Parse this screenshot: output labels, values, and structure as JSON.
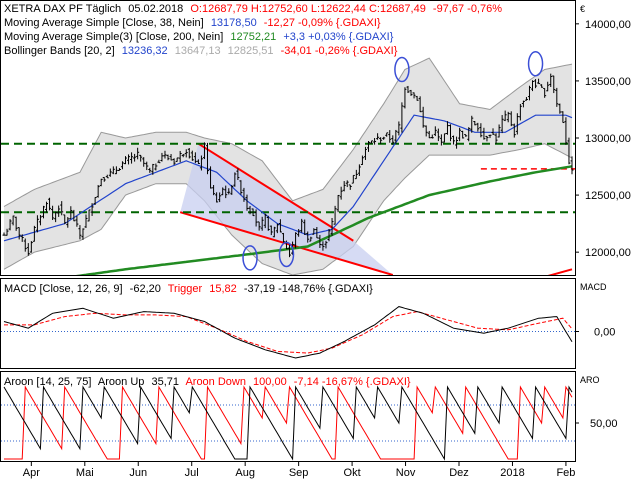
{
  "colors": {
    "red": "#ff0000",
    "blue": "#2244cc",
    "green": "#228b22",
    "dkgreen": "#006400",
    "gray": "#999999",
    "black": "#000000",
    "band": "#dcdcdc",
    "channel": "#c8cff0",
    "circle": "#3b4fd6",
    "axis": "#000000"
  },
  "chart_data": [
    {
      "type": "line",
      "panel": "price",
      "legend": {
        "line1_label": "XETRA DAX PF Täglich",
        "line1_date": "05.02.2018",
        "line1_ohlc": "O:12687,79 H:12752,60 L:12622,44 C:12687,49",
        "line1_change": "-97,67 -0,76%",
        "line2_label": "Moving Average Simple [Close, 38, Nein]",
        "line2_value": "13178,50",
        "line2_change": "-12,27 -0,09% {.GDAXI}",
        "line3_label": "Moving Average Simple(3) [Close, 200, Nein]",
        "line3_value": "12752,21",
        "line3_change": "+3,3 +0,03% {.GDAXI}",
        "line4_label": "Bollinger Bands [20, 2]",
        "line4_v1": "13236,32",
        "line4_v2": "13647,13",
        "line4_v3": "12825,51",
        "line4_change": "-34,01 -0,26% {.GDAXI}"
      },
      "x_labels": [
        "Apr",
        "Mai",
        "Jun",
        "Jul",
        "Aug",
        "Sep",
        "Okt",
        "Nov",
        "Dez",
        "2018",
        "Feb"
      ],
      "y_ticks": [
        "14000,00",
        "13500,00",
        "13000,00",
        "12500,00",
        "12000,00"
      ],
      "ylim": [
        11800,
        14200
      ],
      "price_nodes": [
        [
          0,
          12150
        ],
        [
          3,
          12300
        ],
        [
          5,
          12150
        ],
        [
          8,
          12000
        ],
        [
          10,
          12200
        ],
        [
          14,
          12450
        ],
        [
          16,
          12300
        ],
        [
          18,
          12400
        ],
        [
          20,
          12250
        ],
        [
          22,
          12350
        ],
        [
          25,
          12150
        ],
        [
          28,
          12350
        ],
        [
          32,
          12650
        ],
        [
          36,
          12700
        ],
        [
          40,
          12800
        ],
        [
          44,
          12850
        ],
        [
          48,
          12700
        ],
        [
          52,
          12850
        ],
        [
          56,
          12800
        ],
        [
          60,
          12900
        ],
        [
          64,
          12750
        ],
        [
          66,
          12920
        ],
        [
          68,
          12550
        ],
        [
          70,
          12450
        ],
        [
          72,
          12550
        ],
        [
          74,
          12500
        ],
        [
          76,
          12700
        ],
        [
          78,
          12550
        ],
        [
          80,
          12400
        ],
        [
          82,
          12350
        ],
        [
          84,
          12200
        ],
        [
          86,
          12300
        ],
        [
          88,
          12150
        ],
        [
          90,
          12250
        ],
        [
          92,
          12100
        ],
        [
          94,
          11980
        ],
        [
          96,
          12150
        ],
        [
          98,
          12250
        ],
        [
          100,
          12100
        ],
        [
          102,
          12200
        ],
        [
          104,
          12050
        ],
        [
          106,
          12100
        ],
        [
          108,
          12250
        ],
        [
          110,
          12500
        ],
        [
          112,
          12600
        ],
        [
          114,
          12600
        ],
        [
          116,
          12700
        ],
        [
          118,
          12850
        ],
        [
          120,
          12950
        ],
        [
          122,
          12980
        ],
        [
          124,
          13000
        ],
        [
          126,
          13020
        ],
        [
          128,
          12980
        ],
        [
          130,
          13100
        ],
        [
          132,
          13450
        ],
        [
          134,
          13400
        ],
        [
          136,
          13350
        ],
        [
          138,
          13100
        ],
        [
          140,
          13000
        ],
        [
          142,
          13050
        ],
        [
          144,
          12950
        ],
        [
          146,
          13100
        ],
        [
          148,
          12950
        ],
        [
          150,
          13050
        ],
        [
          152,
          13000
        ],
        [
          154,
          13150
        ],
        [
          156,
          13100
        ],
        [
          158,
          13000
        ],
        [
          160,
          13050
        ],
        [
          162,
          13000
        ],
        [
          164,
          13150
        ],
        [
          166,
          13200
        ],
        [
          168,
          13050
        ],
        [
          170,
          13300
        ],
        [
          172,
          13350
        ],
        [
          174,
          13500
        ],
        [
          176,
          13450
        ],
        [
          178,
          13400
        ],
        [
          180,
          13550
        ],
        [
          182,
          13300
        ],
        [
          184,
          13150
        ],
        [
          186,
          12800
        ],
        [
          187,
          12690
        ]
      ],
      "ma38_nodes": [
        [
          0,
          12100
        ],
        [
          20,
          12250
        ],
        [
          40,
          12600
        ],
        [
          60,
          12800
        ],
        [
          70,
          12700
        ],
        [
          80,
          12450
        ],
        [
          90,
          12250
        ],
        [
          100,
          12150
        ],
        [
          108,
          12200
        ],
        [
          115,
          12400
        ],
        [
          125,
          12800
        ],
        [
          135,
          13200
        ],
        [
          145,
          13150
        ],
        [
          155,
          13050
        ],
        [
          165,
          13050
        ],
        [
          175,
          13200
        ],
        [
          185,
          13200
        ],
        [
          187,
          13178
        ]
      ],
      "ma200_nodes": [
        [
          0,
          11700
        ],
        [
          40,
          11850
        ],
        [
          80,
          11980
        ],
        [
          100,
          12050
        ],
        [
          120,
          12300
        ],
        [
          140,
          12500
        ],
        [
          160,
          12620
        ],
        [
          175,
          12700
        ],
        [
          187,
          12752
        ]
      ],
      "bb_upper_nodes": [
        [
          0,
          12400
        ],
        [
          10,
          12550
        ],
        [
          25,
          12700
        ],
        [
          32,
          13050
        ],
        [
          40,
          13000
        ],
        [
          50,
          13050
        ],
        [
          60,
          13050
        ],
        [
          66,
          13000
        ],
        [
          75,
          12950
        ],
        [
          85,
          12800
        ],
        [
          95,
          12450
        ],
        [
          105,
          12550
        ],
        [
          115,
          12900
        ],
        [
          125,
          13300
        ],
        [
          132,
          13600
        ],
        [
          140,
          13700
        ],
        [
          150,
          13300
        ],
        [
          160,
          13250
        ],
        [
          170,
          13450
        ],
        [
          178,
          13600
        ],
        [
          187,
          13647
        ]
      ],
      "bb_lower_nodes": [
        [
          0,
          11850
        ],
        [
          10,
          12000
        ],
        [
          25,
          12100
        ],
        [
          32,
          12200
        ],
        [
          40,
          12500
        ],
        [
          50,
          12600
        ],
        [
          60,
          12600
        ],
        [
          66,
          12450
        ],
        [
          75,
          12150
        ],
        [
          85,
          11900
        ],
        [
          95,
          11800
        ],
        [
          105,
          11850
        ],
        [
          115,
          12050
        ],
        [
          125,
          12450
        ],
        [
          132,
          12650
        ],
        [
          140,
          12850
        ],
        [
          150,
          12850
        ],
        [
          160,
          12850
        ],
        [
          170,
          12900
        ],
        [
          178,
          12950
        ],
        [
          187,
          12825
        ]
      ],
      "hlines": [
        12950,
        12350
      ],
      "red_dashed": [
        12730,
        157,
        187
      ],
      "channel": {
        "top": [
          [
            64,
            12950
          ],
          [
            115,
            12100
          ]
        ],
        "bottom": [
          [
            58,
            12350
          ],
          [
            128,
            11800
          ]
        ]
      },
      "trend_line": [
        [
          160,
          11650
        ],
        [
          187,
          11850
        ]
      ],
      "circles": [
        [
          81,
          11950
        ],
        [
          93,
          11980
        ],
        [
          131,
          13600
        ],
        [
          175,
          13650
        ]
      ]
    },
    {
      "type": "line",
      "panel": "macd",
      "legend": {
        "name": "MACD [Close, 12, 26, 9]",
        "value": "-62,20",
        "trigger_label": "Trigger",
        "trigger_value": "15,82",
        "change": "-37,19 -148,76% {.GDAXI}"
      },
      "axis_title": "MACD",
      "y_ticks": [
        "0,00"
      ],
      "ylim": [
        -220,
        220
      ],
      "macd_nodes": [
        [
          0,
          60
        ],
        [
          8,
          20
        ],
        [
          16,
          110
        ],
        [
          26,
          140
        ],
        [
          36,
          80
        ],
        [
          46,
          120
        ],
        [
          56,
          110
        ],
        [
          66,
          60
        ],
        [
          76,
          -40
        ],
        [
          86,
          -110
        ],
        [
          96,
          -160
        ],
        [
          104,
          -130
        ],
        [
          112,
          -60
        ],
        [
          122,
          40
        ],
        [
          130,
          150
        ],
        [
          138,
          110
        ],
        [
          148,
          20
        ],
        [
          158,
          -10
        ],
        [
          166,
          20
        ],
        [
          176,
          80
        ],
        [
          182,
          90
        ],
        [
          187,
          -62
        ]
      ],
      "trigger_nodes": [
        [
          0,
          40
        ],
        [
          10,
          40
        ],
        [
          20,
          90
        ],
        [
          30,
          110
        ],
        [
          40,
          100
        ],
        [
          50,
          100
        ],
        [
          60,
          90
        ],
        [
          70,
          20
        ],
        [
          80,
          -60
        ],
        [
          90,
          -120
        ],
        [
          100,
          -130
        ],
        [
          108,
          -100
        ],
        [
          118,
          -20
        ],
        [
          128,
          90
        ],
        [
          136,
          120
        ],
        [
          146,
          70
        ],
        [
          156,
          20
        ],
        [
          166,
          10
        ],
        [
          176,
          50
        ],
        [
          184,
          80
        ],
        [
          187,
          16
        ]
      ]
    },
    {
      "type": "line",
      "panel": "aroon",
      "legend": {
        "name": "Aroon [14, 25, 75]",
        "up_label": "Aroon Up",
        "up_value": "35,71",
        "down_label": "Aroon Down",
        "down_value": "100,00",
        "change": "-7,14 -16,67% {.GDAXI}"
      },
      "axis_title": "ARO",
      "y_ticks": [
        "50,00"
      ],
      "ylim": [
        0,
        100
      ],
      "hlines": [
        75,
        25
      ],
      "up_resets": [
        0,
        13,
        26,
        33,
        45,
        56,
        62,
        81,
        96,
        105,
        116,
        123,
        131,
        146,
        156,
        164,
        175,
        186
      ],
      "down_resets": [
        7,
        20,
        39,
        51,
        67,
        79,
        86,
        94,
        110,
        136,
        142,
        152,
        170,
        178,
        185
      ]
    }
  ]
}
